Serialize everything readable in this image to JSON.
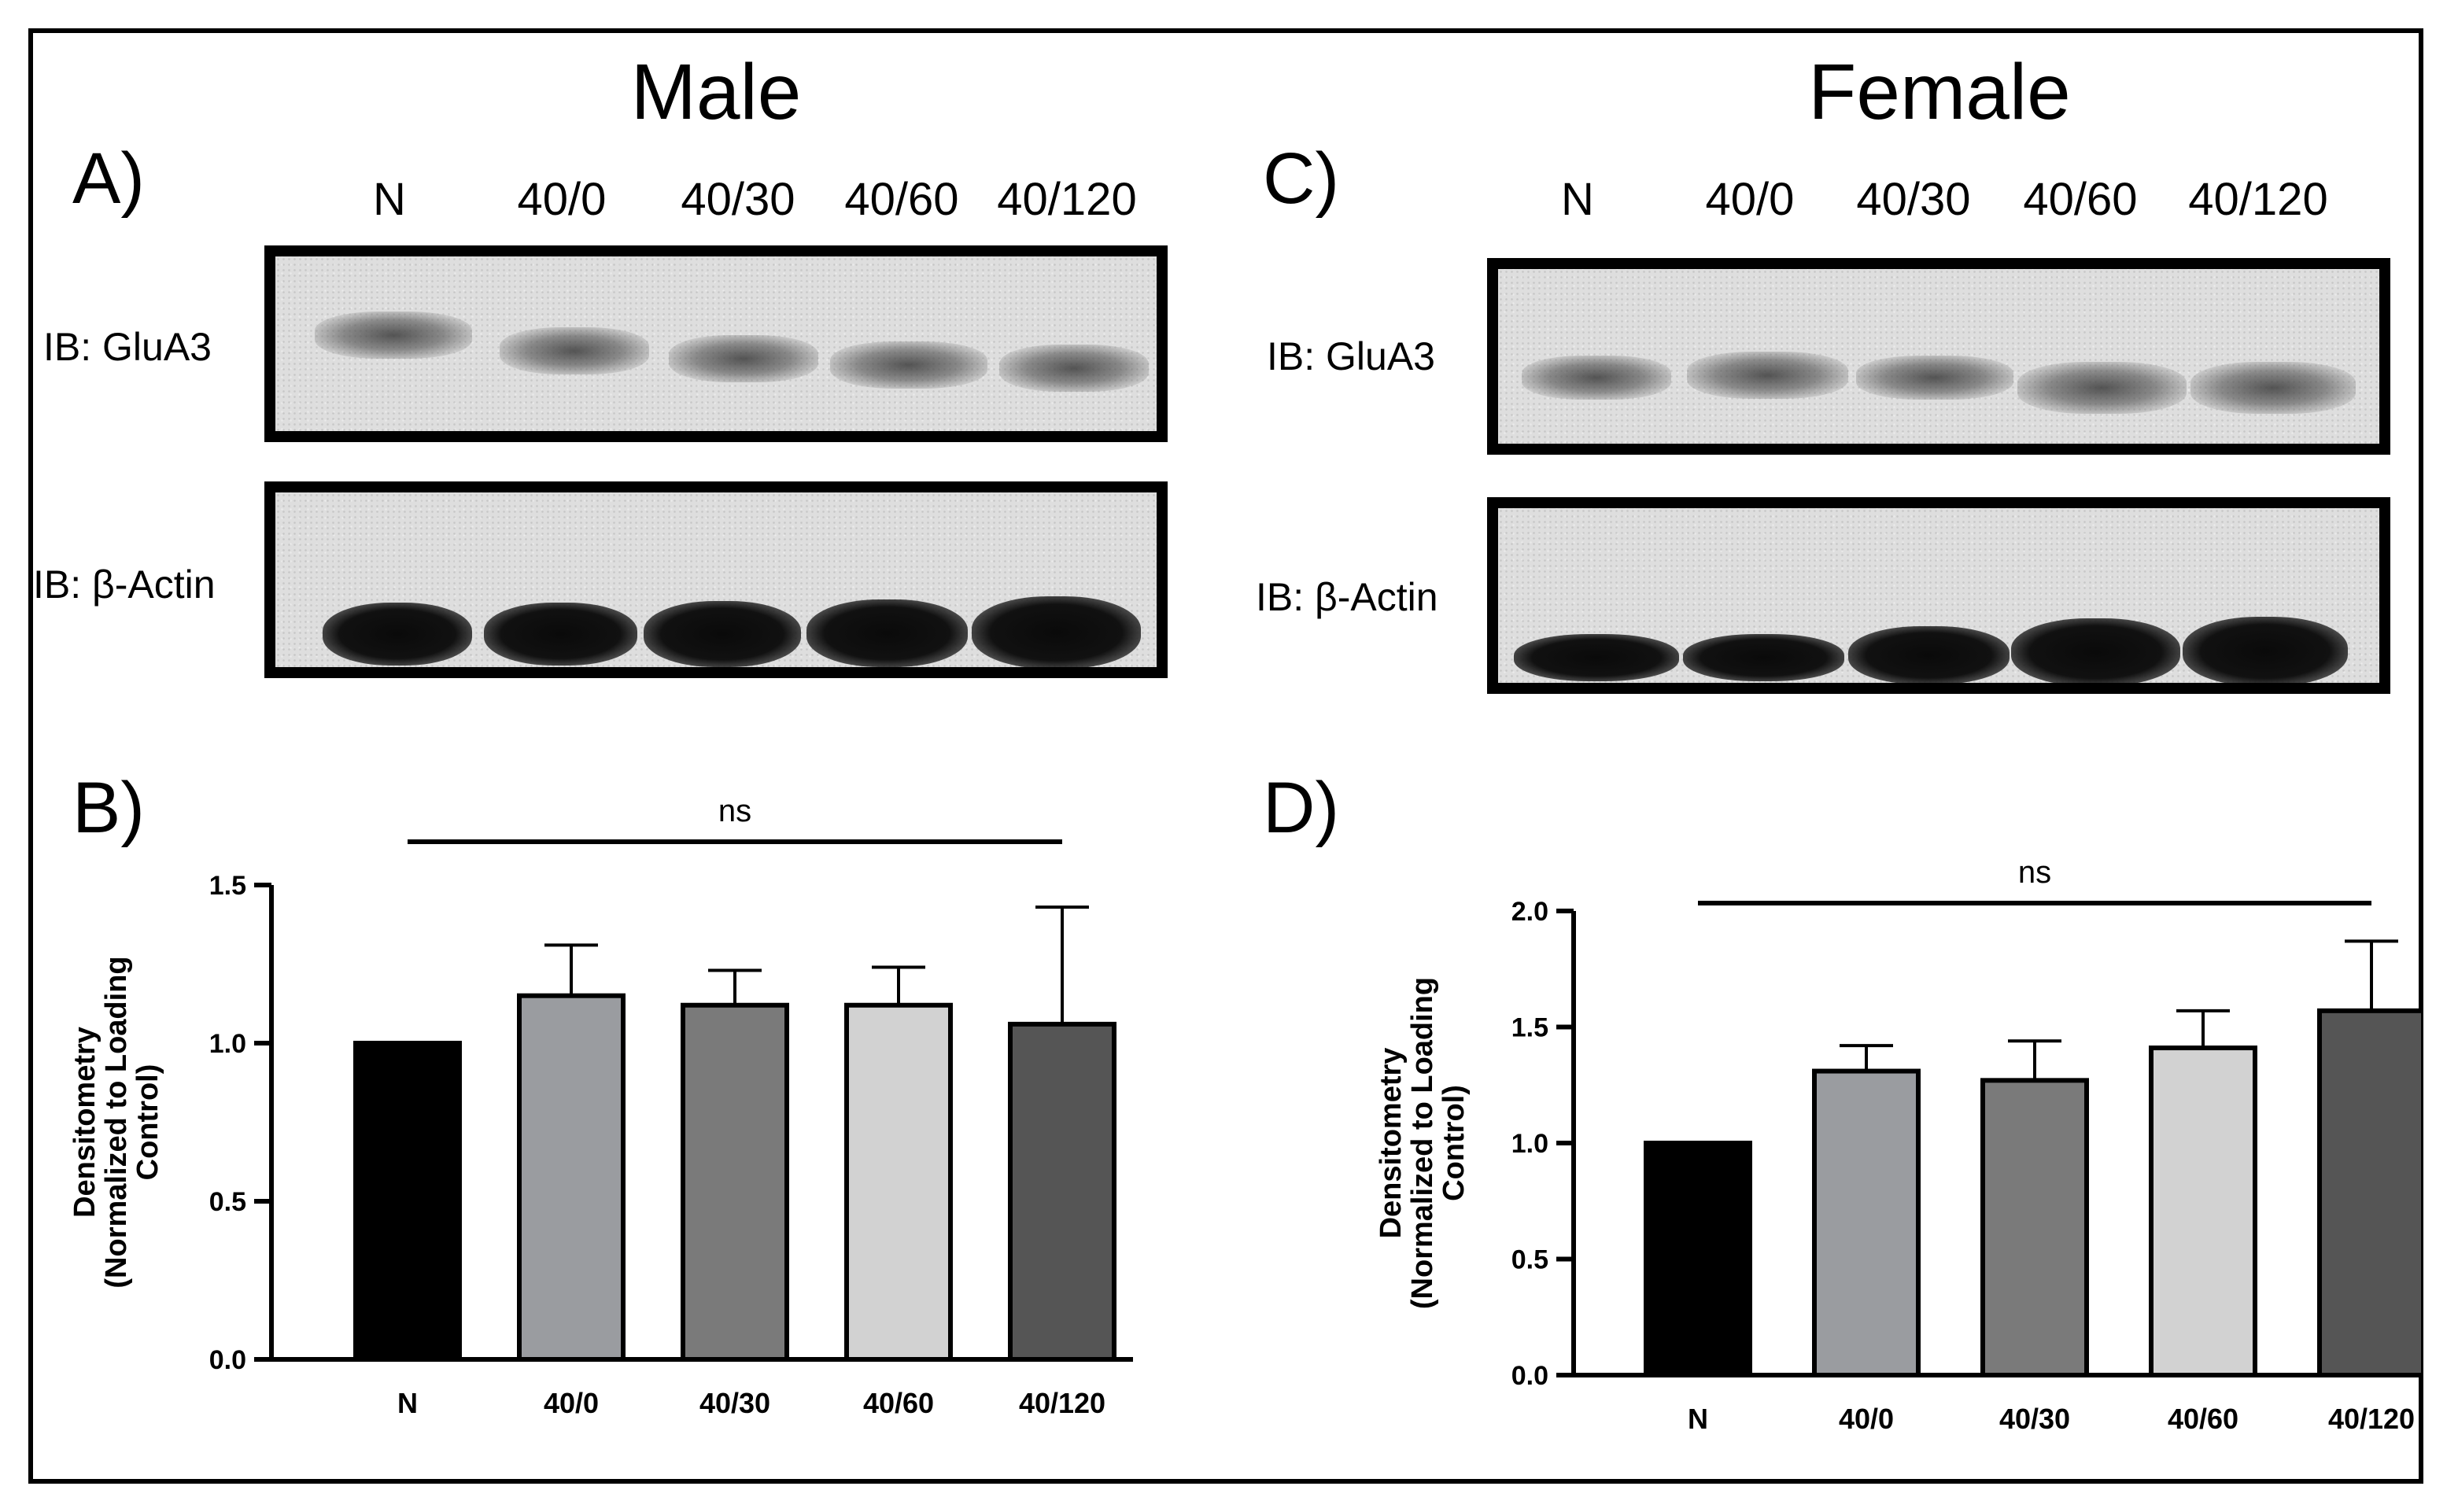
{
  "figure": {
    "male_title": "Male",
    "female_title": "Female",
    "panel_a": "A)",
    "panel_b": "B)",
    "panel_c": "C)",
    "panel_d": "D)",
    "lanes": [
      "N",
      "40/0",
      "40/30",
      "40/60",
      "40/120"
    ],
    "ib_glua3": "IB: GluA3",
    "ib_actin": "IB: β-Actin",
    "bar_colors": [
      "#000000",
      "#9a9ca0",
      "#7a7a7a",
      "#d2d2d2",
      "#555555"
    ]
  },
  "chart_data": [
    {
      "type": "bar",
      "panel": "B)",
      "categories": [
        "N",
        "40/0",
        "40/30",
        "40/60",
        "40/120"
      ],
      "values": [
        1.0,
        1.15,
        1.12,
        1.12,
        1.06
      ],
      "errors": [
        0.0,
        0.16,
        0.11,
        0.12,
        0.37
      ],
      "ylabel": "Densitometry (Normalized to Loading Control)",
      "ylim": [
        0,
        1.5
      ],
      "yticks": [
        "0.0",
        "0.5",
        "1.0",
        "1.5"
      ],
      "significance": "ns"
    },
    {
      "type": "bar",
      "panel": "D)",
      "categories": [
        "N",
        "40/0",
        "40/30",
        "40/60",
        "40/120"
      ],
      "values": [
        1.0,
        1.31,
        1.27,
        1.41,
        1.57
      ],
      "errors": [
        0.0,
        0.11,
        0.17,
        0.16,
        0.3
      ],
      "ylabel": "Densitometry (Normalized to Loading Control)",
      "ylim": [
        0,
        2.0
      ],
      "yticks": [
        "0.0",
        "0.5",
        "1.0",
        "1.5",
        "2.0"
      ],
      "significance": "ns"
    }
  ]
}
